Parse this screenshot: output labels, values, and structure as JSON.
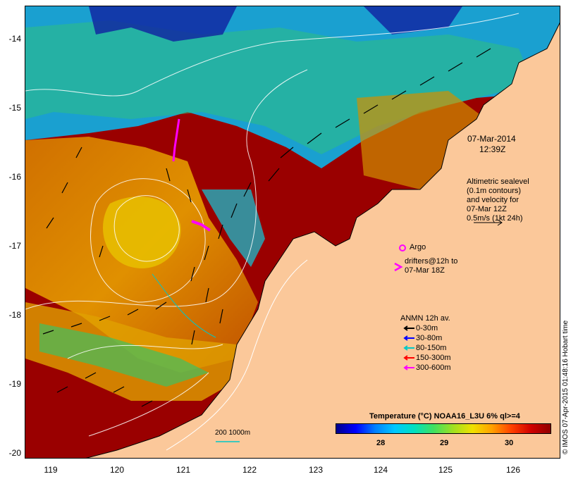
{
  "map": {
    "y_ticks": [
      "-14",
      "-15",
      "-16",
      "-17",
      "-18",
      "-19",
      "-20"
    ],
    "x_ticks": [
      "119",
      "120",
      "121",
      "122",
      "123",
      "124",
      "125",
      "126"
    ],
    "lat_range": [
      -20.1,
      -13.6
    ],
    "lon_range": [
      118.6,
      126.7
    ]
  },
  "annotations": {
    "date": "07-Mar-2014",
    "time": "12:39Z",
    "altimetry_lines": [
      "Altimetric sealevel",
      "(0.1m contours)",
      "and velocity for",
      "07-Mar 12Z",
      "0.5m/s (1kt 24h)"
    ],
    "argo_label": "Argo",
    "drifters_lines": [
      "drifters@12h to",
      "07-Mar 18Z"
    ]
  },
  "anmn_legend": {
    "title": "ANMN 12h av.",
    "items": [
      {
        "label": "0-30m",
        "color": "#000000"
      },
      {
        "label": "30-80m",
        "color": "#0000ff"
      },
      {
        "label": "80-150m",
        "color": "#00c8c8"
      },
      {
        "label": "150-300m",
        "color": "#ff0000"
      },
      {
        "label": "300-600m",
        "color": "#ff00ff"
      }
    ]
  },
  "colorbar": {
    "title": "Temperature (°C) NOAA16_L3U 6% ql>=4",
    "ticks": [
      "28",
      "29",
      "30"
    ],
    "tick_values": [
      28,
      29,
      30
    ],
    "range": [
      27.2,
      30.8
    ],
    "colors": [
      "#00008b",
      "#0000ff",
      "#0080ff",
      "#00c8ff",
      "#00e0c0",
      "#40e060",
      "#a0e020",
      "#f0e000",
      "#ffa000",
      "#ff4000",
      "#d00000",
      "#900000"
    ]
  },
  "isobath_label": "200  1000m",
  "credit": "© IMOS 07-Apr-2015 01:48:16 Hobart time",
  "colors": {
    "land": "#fbc89a",
    "warm_water": "#9a0000",
    "coastline": "#000000"
  }
}
